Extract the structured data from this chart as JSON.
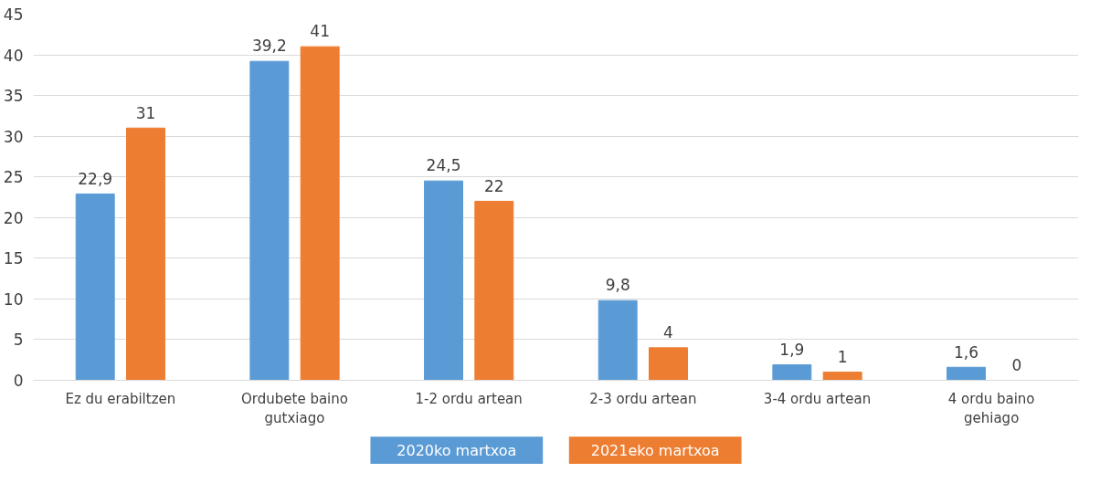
{
  "chart_data": {
    "type": "bar",
    "categories": [
      "Ez du erabiltzen",
      "Ordubete baino\ngutxiago",
      "1-2 ordu artean",
      "2-3 ordu artean",
      "3-4 ordu artean",
      "4 ordu baino\ngehiago"
    ],
    "series": [
      {
        "name": "2020ko martxoa",
        "color": "#5b9bd5",
        "values": [
          22.9,
          39.2,
          24.5,
          9.8,
          1.9,
          1.6
        ],
        "value_labels": [
          "22,9",
          "39,2",
          "24,5",
          "9,8",
          "1,9",
          "1,6"
        ]
      },
      {
        "name": "2021eko martxoa",
        "color": "#ed7d31",
        "values": [
          31,
          41,
          22,
          4,
          1,
          0
        ],
        "value_labels": [
          "31",
          "41",
          "22",
          "4",
          "1",
          "0"
        ]
      }
    ],
    "ylim": [
      0,
      45
    ],
    "yticks": [
      0,
      5,
      10,
      15,
      20,
      25,
      30,
      35,
      40,
      45
    ],
    "grid": "y",
    "legend": "bottom"
  }
}
